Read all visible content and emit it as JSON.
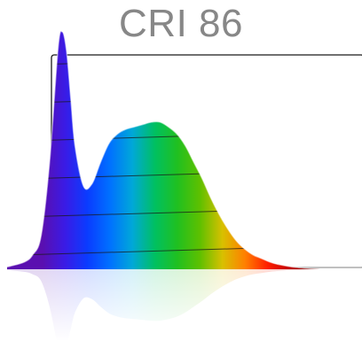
{
  "chart_data": {
    "type": "area",
    "title": "CRI 86",
    "xlabel": "",
    "ylabel": "",
    "grid": true,
    "x": [
      380,
      400,
      410,
      420,
      430,
      440,
      445,
      450,
      455,
      460,
      470,
      480,
      490,
      500,
      510,
      520,
      530,
      540,
      550,
      560,
      570,
      580,
      590,
      600,
      610,
      620,
      630,
      640,
      650,
      660,
      670,
      680,
      690,
      700,
      720,
      750
    ],
    "y": [
      0.01,
      0.03,
      0.06,
      0.14,
      0.45,
      0.93,
      1.0,
      0.92,
      0.72,
      0.52,
      0.35,
      0.36,
      0.45,
      0.53,
      0.57,
      0.59,
      0.6,
      0.61,
      0.62,
      0.62,
      0.6,
      0.57,
      0.52,
      0.45,
      0.38,
      0.3,
      0.23,
      0.17,
      0.12,
      0.085,
      0.06,
      0.045,
      0.03,
      0.02,
      0.008,
      0.0
    ],
    "xlim": [
      380,
      750
    ],
    "ylim": [
      0,
      1
    ],
    "spectrum_colors": [
      "#5a0fb0",
      "#3a1be6",
      "#0a3cff",
      "#0071ff",
      "#00a8d8",
      "#00c060",
      "#20c020",
      "#5ec000",
      "#d8c000",
      "#ff8000",
      "#ff2000",
      "#c00000",
      "#7a0000"
    ]
  }
}
